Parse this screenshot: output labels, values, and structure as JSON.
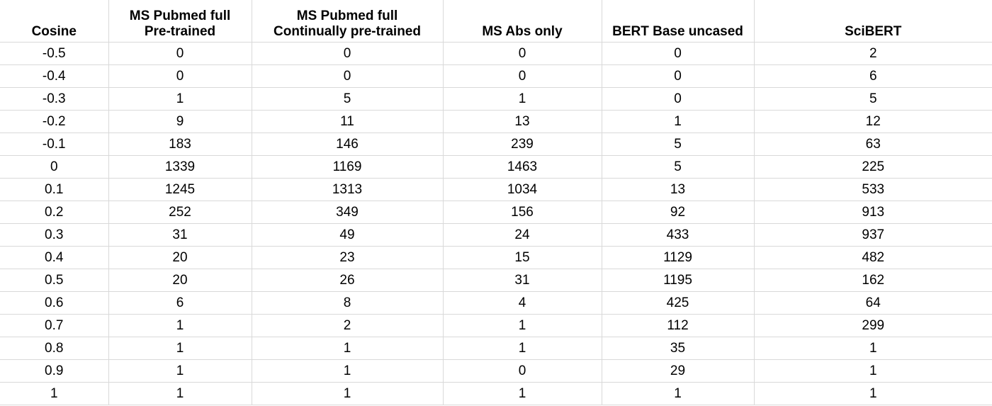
{
  "table": {
    "headers": [
      [
        "Cosine"
      ],
      [
        "MS Pubmed full",
        "Pre-trained"
      ],
      [
        "MS Pubmed full",
        "Continually pre-trained"
      ],
      [
        "MS Abs only"
      ],
      [
        "BERT Base uncased"
      ],
      [
        "SciBERT"
      ]
    ],
    "rows": [
      [
        "-0.5",
        "0",
        "0",
        "0",
        "0",
        "2"
      ],
      [
        "-0.4",
        "0",
        "0",
        "0",
        "0",
        "6"
      ],
      [
        "-0.3",
        "1",
        "5",
        "1",
        "0",
        "5"
      ],
      [
        "-0.2",
        "9",
        "11",
        "13",
        "1",
        "12"
      ],
      [
        "-0.1",
        "183",
        "146",
        "239",
        "5",
        "63"
      ],
      [
        "0",
        "1339",
        "1169",
        "1463",
        "5",
        "225"
      ],
      [
        "0.1",
        "1245",
        "1313",
        "1034",
        "13",
        "533"
      ],
      [
        "0.2",
        "252",
        "349",
        "156",
        "92",
        "913"
      ],
      [
        "0.3",
        "31",
        "49",
        "24",
        "433",
        "937"
      ],
      [
        "0.4",
        "20",
        "23",
        "15",
        "1129",
        "482"
      ],
      [
        "0.5",
        "20",
        "26",
        "31",
        "1195",
        "162"
      ],
      [
        "0.6",
        "6",
        "8",
        "4",
        "425",
        "64"
      ],
      [
        "0.7",
        "1",
        "2",
        "1",
        "112",
        "299"
      ],
      [
        "0.8",
        "1",
        "1",
        "1",
        "35",
        "1"
      ],
      [
        "0.9",
        "1",
        "1",
        "0",
        "29",
        "1"
      ],
      [
        "1",
        "1",
        "1",
        "1",
        "1",
        "1"
      ]
    ]
  },
  "colors": {
    "grid": "#d9d9d9",
    "text": "#000000",
    "background": "#ffffff"
  }
}
